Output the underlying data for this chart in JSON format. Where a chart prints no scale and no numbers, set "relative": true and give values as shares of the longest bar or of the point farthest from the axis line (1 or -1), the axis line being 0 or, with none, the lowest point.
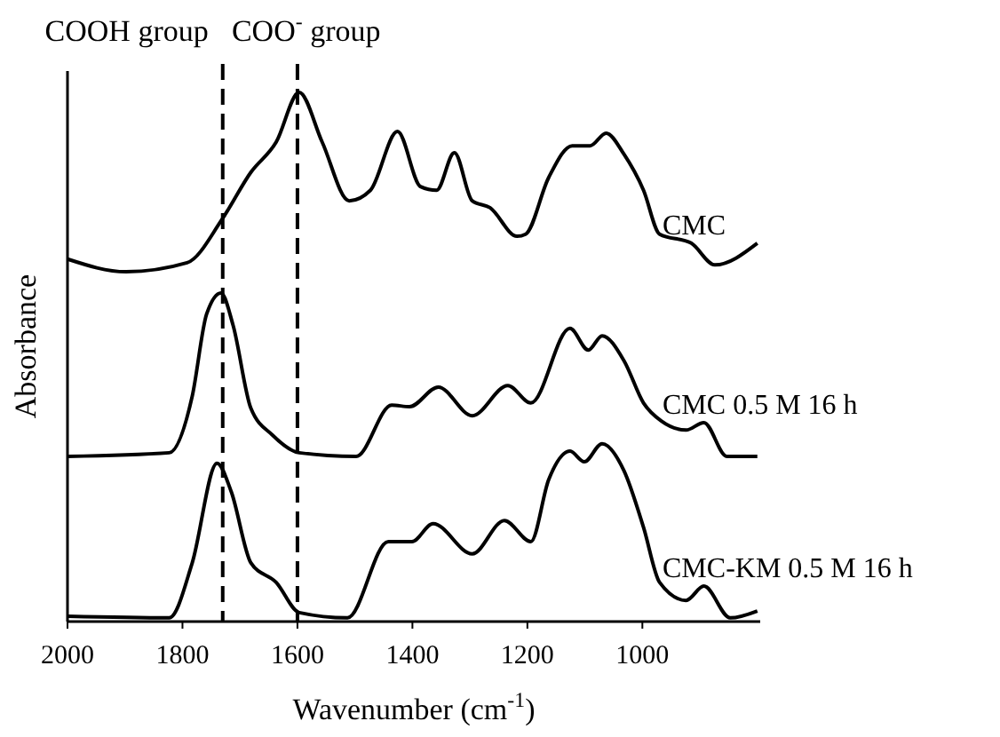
{
  "chart_data": {
    "type": "line",
    "relative": true,
    "xlabel": "Wavenumber (cm$^{-1}$)",
    "ylabel": "Absorbance",
    "xlim": [
      2000,
      795
    ],
    "xticks": [
      2000,
      1800,
      1600,
      1400,
      1200,
      1000
    ],
    "grid": false,
    "line_style": "solid",
    "ref_lines": [
      {
        "axis": "x",
        "value": 1730,
        "label": "COOH group",
        "line_style": "dashed",
        "color": "#000000"
      },
      {
        "axis": "x",
        "value": 1600,
        "label": "COO$^{-}$ group",
        "line_style": "dashed",
        "color": "#000000"
      }
    ],
    "series": [
      {
        "name": "CMC",
        "color": "#000000",
        "x": [
          2000,
          1898,
          1792,
          1730,
          1681,
          1637,
          1597,
          1557,
          1510,
          1473,
          1426,
          1386,
          1358,
          1327,
          1296,
          1265,
          1218,
          1203,
          1163,
          1122,
          1091,
          1063,
          1032,
          998,
          970,
          915,
          874,
          800
        ],
        "values": [
          0.685,
          0.661,
          0.678,
          0.762,
          0.849,
          0.906,
          1,
          0.906,
          0.795,
          0.815,
          0.926,
          0.822,
          0.815,
          0.886,
          0.795,
          0.782,
          0.728,
          0.732,
          0.839,
          0.899,
          0.899,
          0.923,
          0.883,
          0.815,
          0.732,
          0.715,
          0.674,
          0.715
        ]
      },
      {
        "name": "CMC 0.5 M 16 h",
        "color": "#000000",
        "x": [
          2000,
          1823,
          1783,
          1758,
          1733,
          1712,
          1681,
          1643,
          1597,
          1498,
          1436,
          1405,
          1355,
          1296,
          1234,
          1194,
          1126,
          1094,
          1070,
          1032,
          998,
          967,
          924,
          893,
          853,
          800
        ],
        "values": [
          0.312,
          0.319,
          0.426,
          0.581,
          0.621,
          0.56,
          0.403,
          0.352,
          0.319,
          0.312,
          0.409,
          0.406,
          0.443,
          0.389,
          0.446,
          0.413,
          0.554,
          0.513,
          0.54,
          0.493,
          0.413,
          0.379,
          0.362,
          0.376,
          0.312,
          0.312
        ]
      },
      {
        "name": "CMC-KM 0.5 M 16 h",
        "color": "#000000",
        "x": [
          2000,
          1823,
          1783,
          1740,
          1715,
          1681,
          1637,
          1597,
          1513,
          1442,
          1401,
          1364,
          1296,
          1240,
          1194,
          1163,
          1126,
          1101,
          1070,
          1032,
          998,
          970,
          924,
          893,
          847,
          800
        ],
        "values": [
          0.01,
          0.007,
          0.111,
          0.299,
          0.245,
          0.111,
          0.074,
          0.017,
          0.007,
          0.151,
          0.151,
          0.185,
          0.128,
          0.191,
          0.151,
          0.268,
          0.322,
          0.302,
          0.336,
          0.285,
          0.178,
          0.074,
          0.04,
          0.067,
          0.007,
          0.02
        ]
      }
    ]
  }
}
